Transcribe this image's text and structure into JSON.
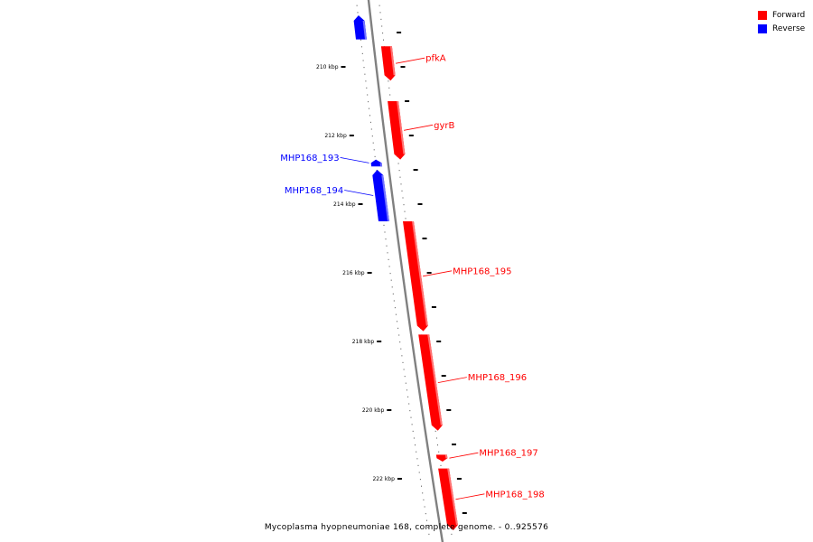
{
  "legend": {
    "items": [
      {
        "label": "Forward",
        "color": "#ff0000"
      },
      {
        "label": "Reverse",
        "color": "#0000ff"
      }
    ]
  },
  "caption": "Mycoplasma hyopneumoniae 168, complete genome. - 0..925576",
  "ticks": [
    {
      "kbp": 210,
      "label": "210 kbp"
    },
    {
      "kbp": 212,
      "label": "212 kbp"
    },
    {
      "kbp": 214,
      "label": "214 kbp"
    },
    {
      "kbp": 216,
      "label": "216 kbp"
    },
    {
      "kbp": 218,
      "label": "218 kbp"
    },
    {
      "kbp": 220,
      "label": "220 kbp"
    },
    {
      "kbp": 222,
      "label": "222 kbp"
    }
  ],
  "genes": [
    {
      "id": "prev",
      "label": "",
      "strand": "reverse",
      "start": 208.5,
      "end": 209.2,
      "color": "#0000ff"
    },
    {
      "id": "pfkA",
      "label": "pfkA",
      "strand": "forward",
      "start": 209.4,
      "end": 210.4,
      "color": "#ff0000"
    },
    {
      "id": "gyrB",
      "label": "gyrB",
      "strand": "forward",
      "start": 211.0,
      "end": 212.7,
      "color": "#ff0000"
    },
    {
      "id": "MHP168_193",
      "label": "MHP168_193",
      "strand": "reverse",
      "start": 212.7,
      "end": 212.9,
      "color": "#0000ff"
    },
    {
      "id": "MHP168_194",
      "label": "MHP168_194",
      "strand": "reverse",
      "start": 213.0,
      "end": 214.5,
      "color": "#0000ff"
    },
    {
      "id": "MHP168_195",
      "label": "MHP168_195",
      "strand": "forward",
      "start": 214.5,
      "end": 217.7,
      "color": "#ff0000"
    },
    {
      "id": "MHP168_196",
      "label": "MHP168_196",
      "strand": "forward",
      "start": 217.8,
      "end": 220.6,
      "color": "#ff0000"
    },
    {
      "id": "MHP168_197",
      "label": "MHP168_197",
      "strand": "forward",
      "start": 221.3,
      "end": 221.5,
      "color": "#ff0000"
    },
    {
      "id": "MHP168_198",
      "label": "MHP168_198",
      "strand": "forward",
      "start": 221.7,
      "end": 223.5,
      "color": "#ff0000"
    }
  ]
}
